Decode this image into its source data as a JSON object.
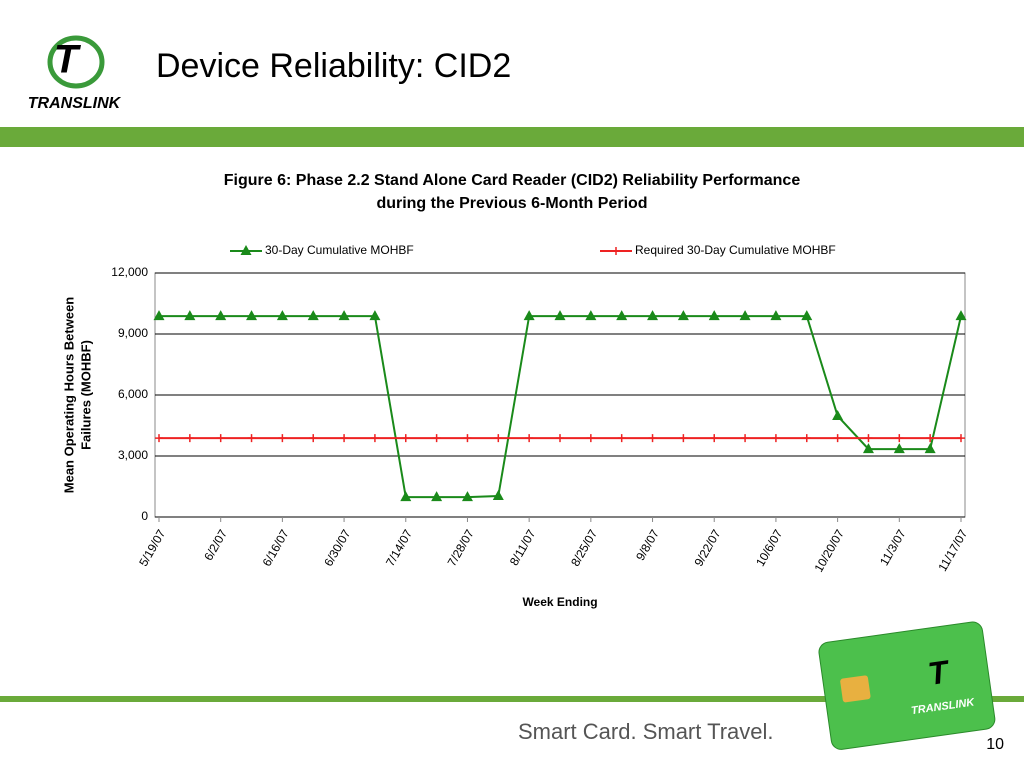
{
  "slide": {
    "title": "Device Reliability: CID2",
    "logo_text": "TRANSLINK",
    "tagline": "Smart Card. Smart Travel.",
    "page_number": "10"
  },
  "chart_data": {
    "type": "line",
    "title": [
      "Figure 6: Phase 2.2 Stand Alone Card Reader (CID2) Reliability Performance",
      "during the Previous 6-Month Period"
    ],
    "xlabel": "Week Ending",
    "ylabel": [
      "Mean Operating Hours Between",
      "Failures (MOHBF)"
    ],
    "categories": [
      "5/19/07",
      null,
      "6/2/07",
      null,
      "6/16/07",
      null,
      "6/30/07",
      null,
      "7/14/07",
      null,
      "7/28/07",
      null,
      "8/11/07",
      null,
      "8/25/07",
      null,
      "9/8/07",
      null,
      "9/22/07",
      null,
      "10/6/07",
      null,
      "10/20/07",
      null,
      "11/3/07",
      null,
      "11/17/07"
    ],
    "series": [
      {
        "name": "30-Day Cumulative MOHBF",
        "color": "#1a8a1a",
        "marker": "triangle",
        "values": [
          9880,
          9880,
          9880,
          9880,
          9880,
          9880,
          9880,
          9880,
          980,
          980,
          980,
          1030,
          9880,
          9880,
          9880,
          9880,
          9880,
          9880,
          9880,
          9880,
          9880,
          9880,
          4970,
          3340,
          3340,
          3340,
          9880
        ]
      },
      {
        "name": "Required 30-Day Cumulative MOHBF",
        "color": "#ee2222",
        "marker": "plus",
        "values": [
          3880,
          3880,
          3880,
          3880,
          3880,
          3880,
          3880,
          3880,
          3880,
          3880,
          3880,
          3880,
          3880,
          3880,
          3880,
          3880,
          3880,
          3880,
          3880,
          3880,
          3880,
          3880,
          3880,
          3880,
          3880,
          3880,
          3880
        ]
      }
    ],
    "ylim": [
      0,
      12000
    ],
    "yticks": [
      0,
      {
        "value": 3000,
        "label": "3,000"
      },
      {
        "value": 6000,
        "label": "6,000"
      },
      {
        "value": 9000,
        "label": "9,000"
      },
      {
        "value": 12000,
        "label": "12,000"
      }
    ],
    "grid": true,
    "legend": "top"
  }
}
